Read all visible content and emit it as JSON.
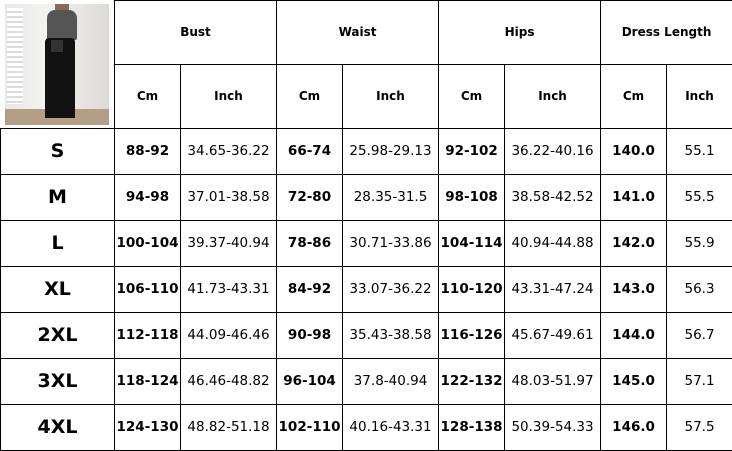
{
  "headers": {
    "groups": [
      "Bust",
      "Waist",
      "Hips",
      "Dress Length"
    ],
    "units": [
      "Cm",
      "Inch",
      "Cm",
      "Inch",
      "Cm",
      "Inch",
      "Cm",
      "Inch"
    ]
  },
  "rows": [
    {
      "size": "S",
      "values": [
        "88-92",
        "34.65-36.22",
        "66-74",
        "25.98-29.13",
        "92-102",
        "36.22-40.16",
        "140.0",
        "55.1"
      ]
    },
    {
      "size": "M",
      "values": [
        "94-98",
        "37.01-38.58",
        "72-80",
        "28.35-31.5",
        "98-108",
        "38.58-42.52",
        "141.0",
        "55.5"
      ]
    },
    {
      "size": "L",
      "values": [
        "100-104",
        "39.37-40.94",
        "78-86",
        "30.71-33.86",
        "104-114",
        "40.94-44.88",
        "142.0",
        "55.9"
      ]
    },
    {
      "size": "XL",
      "values": [
        "106-110",
        "41.73-43.31",
        "84-92",
        "33.07-36.22",
        "110-120",
        "43.31-47.24",
        "143.0",
        "56.3"
      ]
    },
    {
      "size": "2XL",
      "values": [
        "112-118",
        "44.09-46.46",
        "90-98",
        "35.43-38.58",
        "116-126",
        "45.67-49.61",
        "144.0",
        "56.7"
      ]
    },
    {
      "size": "3XL",
      "values": [
        "118-124",
        "46.46-48.82",
        "96-104",
        "37.8-40.94",
        "122-132",
        "48.03-51.97",
        "145.0",
        "57.1"
      ]
    },
    {
      "size": "4XL",
      "values": [
        "124-130",
        "48.82-51.18",
        "102-110",
        "40.16-43.31",
        "128-138",
        "50.39-54.33",
        "146.0",
        "57.5"
      ]
    }
  ]
}
